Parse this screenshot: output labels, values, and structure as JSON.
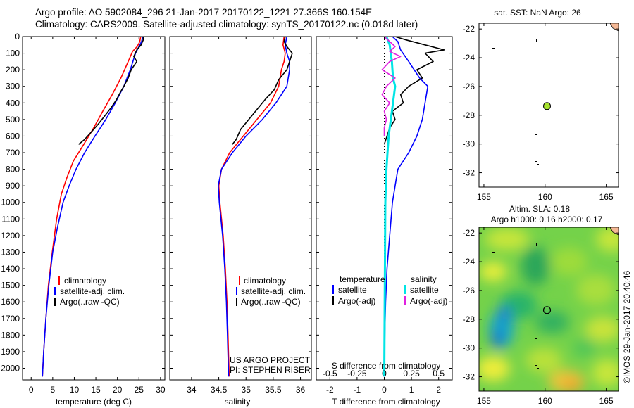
{
  "header": {
    "line1": "Argo profile: AO 5902084_296 21-Jan-2017 20170122_1221 27.366S 160.154E",
    "line2": "Climatology: CARS2009. Satellite-adjusted climatology: synTS_20170122.nc (0.018d later)"
  },
  "colors": {
    "climatology": "#ff0000",
    "satellite": "#0000ff",
    "argo": "#000000",
    "sat_salinity": "#00e5e5",
    "argo_salinity": "#e020e0",
    "land": "#f5b895",
    "float_marker": "#a6e22e"
  },
  "depth_axis": {
    "ticks": [
      "0",
      "100",
      "200",
      "300",
      "400",
      "500",
      "600",
      "700",
      "800",
      "900",
      "1000",
      "1100",
      "1200",
      "1300",
      "1400",
      "1500",
      "1600",
      "1700",
      "1800",
      "1900",
      "2000"
    ],
    "range": [
      0,
      2070
    ]
  },
  "chart_data": [
    {
      "type": "line",
      "xlabel": "temperature (deg C)",
      "xlim": [
        -2,
        31
      ],
      "xticks": [
        "0",
        "5",
        "10",
        "15",
        "20",
        "25",
        "30"
      ],
      "y": "depth",
      "legend": [
        "climatology",
        "satellite-adj. clim.",
        "Argo(..raw -QC)"
      ],
      "series": [
        {
          "name": "climatology",
          "color": "#ff0000",
          "points": [
            [
              25.4,
              0
            ],
            [
              25.2,
              30
            ],
            [
              24.6,
              60
            ],
            [
              23.5,
              90
            ],
            [
              22.5,
              150
            ],
            [
              20.8,
              250
            ],
            [
              18.8,
              350
            ],
            [
              16.6,
              450
            ],
            [
              14.5,
              550
            ],
            [
              12.2,
              650
            ],
            [
              9.8,
              750
            ],
            [
              8.3,
              850
            ],
            [
              7.0,
              950
            ],
            [
              5.9,
              1100
            ],
            [
              4.9,
              1300
            ],
            [
              4.0,
              1500
            ],
            [
              3.4,
              1700
            ],
            [
              2.9,
              1900
            ],
            [
              2.6,
              2050
            ]
          ]
        },
        {
          "name": "satellite-adj. clim.",
          "color": "#0000ff",
          "points": [
            [
              25.9,
              0
            ],
            [
              25.6,
              30
            ],
            [
              25.0,
              60
            ],
            [
              24.2,
              100
            ],
            [
              23.0,
              200
            ],
            [
              21.5,
              300
            ],
            [
              19.5,
              400
            ],
            [
              17.3,
              500
            ],
            [
              14.8,
              600
            ],
            [
              12.4,
              700
            ],
            [
              10.4,
              800
            ],
            [
              8.8,
              900
            ],
            [
              7.4,
              1000
            ],
            [
              6.1,
              1150
            ],
            [
              5.0,
              1300
            ],
            [
              4.1,
              1500
            ],
            [
              3.4,
              1700
            ],
            [
              2.9,
              1900
            ],
            [
              2.6,
              2050
            ]
          ]
        },
        {
          "name": "Argo(..raw -QC)",
          "color": "#000000",
          "points": [
            [
              26.0,
              0
            ],
            [
              26.0,
              20
            ],
            [
              25.5,
              50
            ],
            [
              24.5,
              80
            ],
            [
              23.8,
              120
            ],
            [
              24.5,
              150
            ],
            [
              23.2,
              200
            ],
            [
              22.5,
              250
            ],
            [
              21.5,
              300
            ],
            [
              20.8,
              330
            ],
            [
              19.8,
              380
            ],
            [
              18.5,
              430
            ],
            [
              17.0,
              480
            ],
            [
              15.5,
              530
            ],
            [
              13.8,
              580
            ],
            [
              12.4,
              620
            ],
            [
              11.0,
              650
            ]
          ]
        }
      ]
    },
    {
      "type": "line",
      "xlabel": "salinity",
      "xlim": [
        33.6,
        36.2
      ],
      "xticks": [
        "34",
        "34.5",
        "35",
        "35.5",
        "36"
      ],
      "y": "depth",
      "legend": [
        "climatology",
        "satellite-adj. clim.",
        "Argo(..raw -QC)"
      ],
      "series": [
        {
          "name": "climatology",
          "color": "#ff0000",
          "points": [
            [
              35.7,
              0
            ],
            [
              35.68,
              50
            ],
            [
              35.72,
              100
            ],
            [
              35.7,
              150
            ],
            [
              35.65,
              200
            ],
            [
              35.6,
              300
            ],
            [
              35.45,
              400
            ],
            [
              35.2,
              500
            ],
            [
              34.95,
              600
            ],
            [
              34.7,
              700
            ],
            [
              34.55,
              800
            ],
            [
              34.5,
              900
            ],
            [
              34.52,
              1000
            ],
            [
              34.58,
              1200
            ],
            [
              34.62,
              1400
            ],
            [
              34.65,
              1600
            ],
            [
              34.67,
              1800
            ],
            [
              34.69,
              2050
            ]
          ]
        },
        {
          "name": "satellite-adj. clim.",
          "color": "#0000ff",
          "points": [
            [
              35.75,
              0
            ],
            [
              35.72,
              50
            ],
            [
              35.75,
              100
            ],
            [
              35.8,
              150
            ],
            [
              35.8,
              200
            ],
            [
              35.75,
              300
            ],
            [
              35.55,
              400
            ],
            [
              35.3,
              500
            ],
            [
              35.0,
              600
            ],
            [
              34.75,
              700
            ],
            [
              34.55,
              800
            ],
            [
              34.49,
              900
            ],
            [
              34.51,
              1000
            ],
            [
              34.57,
              1200
            ],
            [
              34.61,
              1400
            ],
            [
              34.64,
              1600
            ],
            [
              34.66,
              1800
            ],
            [
              34.68,
              2050
            ]
          ]
        },
        {
          "name": "Argo(..raw -QC)",
          "color": "#000000",
          "points": [
            [
              35.72,
              0
            ],
            [
              35.7,
              30
            ],
            [
              35.75,
              60
            ],
            [
              35.85,
              100
            ],
            [
              35.8,
              150
            ],
            [
              35.75,
              200
            ],
            [
              35.6,
              260
            ],
            [
              35.52,
              320
            ],
            [
              35.35,
              380
            ],
            [
              35.2,
              440
            ],
            [
              35.05,
              500
            ],
            [
              34.9,
              560
            ],
            [
              34.82,
              620
            ],
            [
              34.75,
              650
            ]
          ]
        }
      ]
    },
    {
      "type": "line",
      "xlabel": "T difference from climatology",
      "xlabel_top": "S difference from climatology",
      "xlim": [
        -2.5,
        2.5
      ],
      "xticks": [
        "-2",
        "-1",
        "0",
        "1",
        "2"
      ],
      "xticks_top": [
        "-0.5",
        "-0.25",
        "0",
        "0.25",
        "0.5"
      ],
      "y": "depth",
      "legend_groups": [
        {
          "title": "temperature",
          "items": [
            "satellite",
            "Argo(-adj)"
          ]
        },
        {
          "title": "salinity",
          "items": [
            "satellite",
            "Argo(-adj)"
          ]
        }
      ],
      "series": [
        {
          "name": "temperature satellite",
          "color": "#0000ff",
          "points": [
            [
              0.3,
              0
            ],
            [
              0.5,
              30
            ],
            [
              0.6,
              80
            ],
            [
              0.9,
              150
            ],
            [
              1.3,
              250
            ],
            [
              1.6,
              300
            ],
            [
              1.5,
              400
            ],
            [
              1.4,
              500
            ],
            [
              1.2,
              600
            ],
            [
              0.9,
              700
            ],
            [
              0.5,
              800
            ],
            [
              0.4,
              900
            ],
            [
              0.3,
              1000
            ],
            [
              0.2,
              1200
            ],
            [
              0.1,
              1400
            ],
            [
              0.05,
              1600
            ],
            [
              0.02,
              1800
            ],
            [
              0.0,
              2050
            ]
          ]
        },
        {
          "name": "temperature Argo(-adj)",
          "color": "#000000",
          "points": [
            [
              0.4,
              0
            ],
            [
              0.8,
              20
            ],
            [
              1.5,
              50
            ],
            [
              2.2,
              80
            ],
            [
              1.5,
              100
            ],
            [
              1.8,
              150
            ],
            [
              1.2,
              200
            ],
            [
              1.4,
              250
            ],
            [
              0.9,
              300
            ],
            [
              0.6,
              350
            ],
            [
              0.7,
              400
            ],
            [
              0.3,
              450
            ],
            [
              0.4,
              500
            ],
            [
              0.2,
              550
            ],
            [
              0.1,
              600
            ],
            [
              0.0,
              650
            ]
          ]
        },
        {
          "name": "salinity satellite",
          "color": "#00e5e5",
          "points": [
            [
              0.02,
              0
            ],
            [
              0.05,
              50
            ],
            [
              0.07,
              150
            ],
            [
              0.08,
              250
            ],
            [
              0.1,
              300
            ],
            [
              0.08,
              400
            ],
            [
              0.06,
              500
            ],
            [
              0.04,
              600
            ],
            [
              0.03,
              700
            ],
            [
              0.02,
              800
            ],
            [
              0.01,
              1000
            ],
            [
              0.0,
              2050
            ]
          ]
        },
        {
          "name": "salinity Argo(-adj)",
          "color": "#e020e0",
          "points": [
            [
              0.0,
              0
            ],
            [
              0.05,
              30
            ],
            [
              0.1,
              60
            ],
            [
              0.05,
              90
            ],
            [
              0.15,
              120
            ],
            [
              0.05,
              150
            ],
            [
              -0.02,
              200
            ],
            [
              0.1,
              250
            ],
            [
              0.02,
              300
            ],
            [
              -0.02,
              350
            ],
            [
              0.05,
              400
            ],
            [
              0.0,
              450
            ],
            [
              0.02,
              500
            ],
            [
              0.0,
              550
            ],
            [
              0.0,
              600
            ]
          ]
        }
      ]
    }
  ],
  "credits": {
    "line1": "US ARGO PROJECT",
    "line2": "PI: STEPHEN RISER"
  },
  "map_sst": {
    "title": "sat. SST: NaN Argo: 26",
    "xlim": [
      154.6,
      166
    ],
    "ylim": [
      -33,
      -21.6
    ],
    "xticks": [
      "155",
      "160",
      "165"
    ],
    "yticks": [
      "-22",
      "-24",
      "-26",
      "-28",
      "-30",
      "-32"
    ],
    "float": {
      "lon": 160.154,
      "lat": -27.366
    }
  },
  "map_sla": {
    "title1": "Altim. SLA: 0.18",
    "title2": "Argo h1000: 0.16 h2000: 0.17",
    "xlim": [
      154.6,
      166
    ],
    "ylim": [
      -33,
      -21.6
    ],
    "xticks": [
      "155",
      "160",
      "165"
    ],
    "yticks": [
      "-22",
      "-24",
      "-26",
      "-28",
      "-30",
      "-32"
    ],
    "float": {
      "lon": 160.154,
      "lat": -27.366
    }
  },
  "watermark": "©IMOS 29-Jan-2017 20:40:46"
}
